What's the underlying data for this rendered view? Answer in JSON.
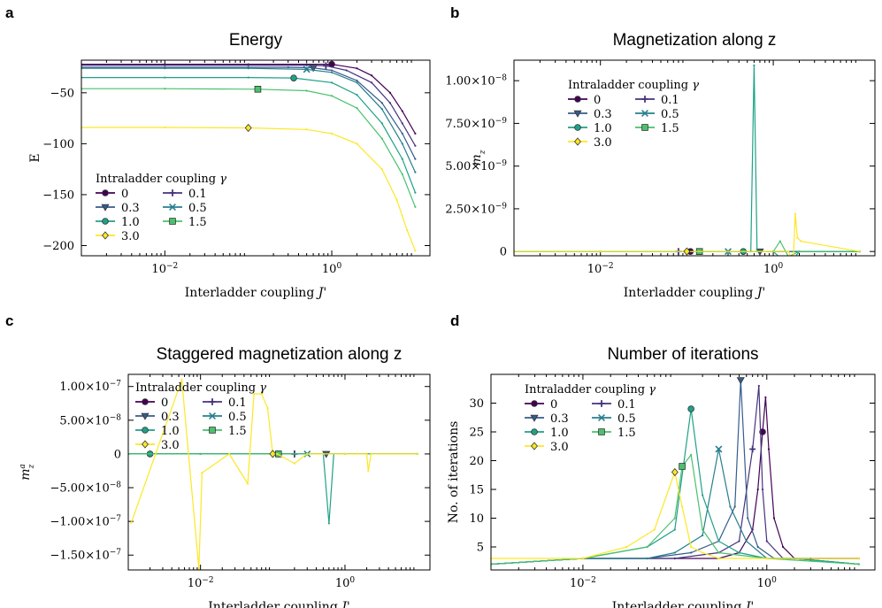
{
  "palette": {
    "0": "#440154",
    "0.1": "#46337e",
    "0.3": "#365c8d",
    "0.5": "#277f8e",
    "1.0": "#1fa187",
    "1.5": "#4ac16d",
    "3.0": "#fde725"
  },
  "chart_data": [
    {
      "type": "line",
      "letter": "a",
      "title": "Energy",
      "xlabel": "Interladder coupling J'",
      "ylabel": "E",
      "xscale": "log",
      "xlim": [
        0.001,
        15
      ],
      "ylim": [
        -210,
        -18
      ],
      "xticks": [
        {
          "v": 0.01,
          "label": "10^{-2}"
        },
        {
          "v": 1,
          "label": "10^{0}"
        }
      ],
      "yticks": [
        {
          "v": -50,
          "label": "−50"
        },
        {
          "v": -100,
          "label": "−100"
        },
        {
          "v": -150,
          "label": "−150"
        },
        {
          "v": -200,
          "label": "−200"
        }
      ],
      "legend": {
        "title": "Intraladder coupling γ",
        "placement": "lower-left"
      },
      "series": [
        {
          "name": "0",
          "marker": "circle",
          "marker_at": 1.0,
          "x": [
            0.001,
            0.01,
            0.1,
            0.5,
            1,
            2,
            3,
            5,
            7,
            10
          ],
          "y": [
            -22,
            -22,
            -22,
            -22,
            -22,
            -26,
            -33,
            -50,
            -68,
            -90
          ]
        },
        {
          "name": "0.1",
          "marker": "plus",
          "marker_at": 0.85,
          "x": [
            0.001,
            0.01,
            0.1,
            0.5,
            0.85,
            1.5,
            3,
            5,
            7,
            10
          ],
          "y": [
            -23,
            -23,
            -23,
            -23,
            -23.5,
            -28,
            -40,
            -60,
            -80,
            -102
          ]
        },
        {
          "name": "0.3",
          "marker": "triangle",
          "marker_at": 0.6,
          "x": [
            0.001,
            0.01,
            0.1,
            0.3,
            0.6,
            1,
            2,
            4,
            7,
            10
          ],
          "y": [
            -25,
            -25,
            -25,
            -25,
            -25.5,
            -28,
            -38,
            -60,
            -90,
            -115
          ]
        },
        {
          "name": "0.5",
          "marker": "x",
          "marker_at": 0.5,
          "x": [
            0.001,
            0.01,
            0.1,
            0.5,
            1,
            2,
            4,
            7,
            10
          ],
          "y": [
            -26,
            -26,
            -26,
            -27,
            -30,
            -40,
            -66,
            -100,
            -128
          ]
        },
        {
          "name": "1.0",
          "marker": "circle",
          "marker_at": 0.35,
          "x": [
            0.001,
            0.01,
            0.1,
            0.35,
            1,
            2,
            4,
            7,
            10
          ],
          "y": [
            -35,
            -35,
            -35,
            -35.5,
            -40,
            -52,
            -80,
            -115,
            -148
          ]
        },
        {
          "name": "1.5",
          "marker": "square",
          "marker_at": 0.13,
          "x": [
            0.001,
            0.01,
            0.13,
            0.5,
            1,
            2,
            4,
            7,
            10
          ],
          "y": [
            -46,
            -46,
            -46.5,
            -48,
            -53,
            -65,
            -95,
            -130,
            -162
          ]
        },
        {
          "name": "3.0",
          "marker": "diamond",
          "marker_at": 0.1,
          "x": [
            0.001,
            0.01,
            0.1,
            0.5,
            1,
            2,
            4,
            6,
            8,
            10
          ],
          "y": [
            -84,
            -84,
            -84.5,
            -86,
            -90,
            -100,
            -125,
            -155,
            -185,
            -205
          ]
        }
      ]
    },
    {
      "type": "line",
      "letter": "b",
      "title": "Magnetization along z",
      "xlabel": "Interladder coupling J'",
      "ylabel": "m_z",
      "xscale": "log",
      "xlim": [
        0.001,
        15
      ],
      "ylim": [
        -2.5e-10,
        1.12e-08
      ],
      "xticks": [
        {
          "v": 0.01,
          "label": "10^{-2}"
        },
        {
          "v": 1,
          "label": "10^{0}"
        }
      ],
      "yticks": [
        {
          "v": 0,
          "label": "0"
        },
        {
          "v": 2.5e-09,
          "label": "2.50×10^{-9}"
        },
        {
          "v": 5e-09,
          "label": "5.00×10^{-9}"
        },
        {
          "v": 7.5e-09,
          "label": "7.50×10^{-9}"
        },
        {
          "v": 1e-08,
          "label": "1.00×10^{-8}"
        }
      ],
      "legend": {
        "title": "Intraladder coupling γ",
        "placement": "upper-left"
      },
      "series": [
        {
          "name": "0",
          "marker": "circle",
          "marker_at": 0.11,
          "x": [
            0.001,
            0.01,
            0.11,
            1,
            2,
            10
          ],
          "y": [
            0,
            0,
            0,
            0,
            0,
            0
          ]
        },
        {
          "name": "0.1",
          "marker": "plus",
          "marker_at": 0.08,
          "x": [
            0.001,
            0.01,
            0.08,
            1,
            10
          ],
          "y": [
            0,
            0,
            0,
            0,
            0
          ]
        },
        {
          "name": "0.3",
          "marker": "triangle",
          "marker_at": 0.7,
          "x": [
            0.001,
            0.01,
            0.1,
            0.7,
            1,
            10
          ],
          "y": [
            0,
            0,
            0,
            0,
            0,
            0
          ]
        },
        {
          "name": "0.5",
          "marker": "x",
          "marker_at": 0.3,
          "x": [
            0.001,
            0.01,
            0.3,
            1,
            10
          ],
          "y": [
            0,
            0,
            0,
            0,
            0
          ]
        },
        {
          "name": "1.0",
          "marker": "circle",
          "marker_at": 0.45,
          "x": [
            0.001,
            0.01,
            0.1,
            0.45,
            0.55,
            0.6,
            0.65,
            1,
            1.5,
            2,
            10
          ],
          "y": [
            0,
            0,
            0,
            0,
            0,
            1.09e-08,
            0,
            0,
            -8e-10,
            0,
            0
          ]
        },
        {
          "name": "1.5",
          "marker": "square",
          "marker_at": 0.14,
          "x": [
            0.001,
            0.01,
            0.14,
            1,
            1.2,
            1.5,
            2,
            10
          ],
          "y": [
            0,
            0,
            0,
            0,
            6e-10,
            -3e-10,
            0,
            0
          ]
        },
        {
          "name": "3.0",
          "marker": "diamond",
          "marker_at": 0.1,
          "x": [
            0.001,
            0.01,
            0.1,
            0.8,
            1.5,
            1.7,
            1.8,
            1.9,
            2.1,
            10
          ],
          "y": [
            0,
            0,
            0,
            0,
            0,
            -6e-10,
            2.2e-09,
            8e-10,
            6e-10,
            0
          ]
        }
      ]
    },
    {
      "type": "line",
      "letter": "c",
      "title": "Staggered magnetization along z",
      "xlabel": "Interladder coupling J'",
      "ylabel": "m_z^a",
      "xscale": "log",
      "xlim": [
        0.001,
        15
      ],
      "ylim": [
        -1.72e-07,
        1.18e-07
      ],
      "xticks": [
        {
          "v": 0.01,
          "label": "10^{-2}"
        },
        {
          "v": 1,
          "label": "10^{0}"
        }
      ],
      "yticks": [
        {
          "v": 1e-07,
          "label": "1.00×10^{-7}"
        },
        {
          "v": 5e-08,
          "label": "5.00×10^{-8}"
        },
        {
          "v": 0,
          "label": "0"
        },
        {
          "v": -5e-08,
          "label": "−5.00×10^{-8}"
        },
        {
          "v": -1e-07,
          "label": "−1.00×10^{-7}"
        },
        {
          "v": -1.5e-07,
          "label": "−1.50×10^{-7}"
        }
      ],
      "legend": {
        "title": "Intraladder coupling γ",
        "placement": "upper-left"
      },
      "series": [
        {
          "name": "0",
          "marker": "circle",
          "marker_at": 0.12,
          "x": [
            0.001,
            0.01,
            0.12,
            1,
            10
          ],
          "y": [
            0,
            0,
            0,
            0,
            0
          ]
        },
        {
          "name": "0.1",
          "marker": "plus",
          "marker_at": 0.2,
          "x": [
            0.001,
            0.01,
            0.2,
            1,
            10
          ],
          "y": [
            0,
            0,
            0,
            0,
            0
          ]
        },
        {
          "name": "0.3",
          "marker": "triangle",
          "marker_at": 0.55,
          "x": [
            0.001,
            0.01,
            0.1,
            0.55,
            1,
            10
          ],
          "y": [
            0,
            0,
            0,
            0,
            0,
            0
          ]
        },
        {
          "name": "0.5",
          "marker": "x",
          "marker_at": 0.3,
          "x": [
            0.001,
            0.01,
            0.3,
            1,
            10
          ],
          "y": [
            0,
            0,
            0,
            0,
            0
          ]
        },
        {
          "name": "1.0",
          "marker": "circle",
          "marker_at": 0.002,
          "x": [
            0.001,
            0.002,
            0.01,
            0.1,
            0.5,
            0.6,
            0.7,
            1,
            10
          ],
          "y": [
            0,
            0,
            0,
            0,
            0,
            -1.03e-07,
            0,
            0,
            0
          ]
        },
        {
          "name": "1.5",
          "marker": "square",
          "marker_at": 0.12,
          "x": [
            0.001,
            0.01,
            0.12,
            1,
            10
          ],
          "y": [
            0,
            0,
            0,
            0,
            0
          ]
        },
        {
          "name": "3.0",
          "marker": "diamond",
          "marker_at": 0.1,
          "x": [
            0.0011,
            0.0055,
            0.0095,
            0.0105,
            0.025,
            0.045,
            0.055,
            0.07,
            0.085,
            0.1,
            0.115,
            0.2,
            0.3,
            0.5,
            1,
            1.5,
            2,
            2.1,
            2.3,
            10
          ],
          "y": [
            -1.02e-07,
            1.1e-07,
            -1.7e-07,
            -2.8e-08,
            0,
            -4.4e-08,
            8.9e-08,
            8.9e-08,
            6.8e-08,
            0,
            0,
            -1.4e-08,
            0,
            0,
            0,
            0,
            0,
            -2.5e-08,
            0,
            0
          ]
        }
      ]
    },
    {
      "type": "line",
      "letter": "d",
      "title": "Number of iterations",
      "xlabel": "Interladder coupling J'",
      "ylabel": "No. of iterations",
      "xscale": "log",
      "xlim": [
        0.001,
        15
      ],
      "ylim": [
        1,
        35
      ],
      "xticks": [
        {
          "v": 0.01,
          "label": "10^{-2}"
        },
        {
          "v": 1,
          "label": "10^{0}"
        }
      ],
      "yticks": [
        {
          "v": 5,
          "label": "5"
        },
        {
          "v": 10,
          "label": "10"
        },
        {
          "v": 15,
          "label": "15"
        },
        {
          "v": 20,
          "label": "20"
        },
        {
          "v": 25,
          "label": "25"
        },
        {
          "v": 30,
          "label": "30"
        }
      ],
      "legend": {
        "title": "Intraladder coupling γ",
        "placement": "upper-left"
      },
      "series": [
        {
          "name": "0",
          "marker": "circle",
          "marker_at": 0.9,
          "x": [
            0.001,
            0.01,
            0.1,
            0.3,
            0.5,
            0.7,
            0.8,
            0.9,
            0.97,
            1.05,
            1.2,
            1.5,
            2,
            3,
            10
          ],
          "y": [
            2,
            3,
            3,
            3,
            4,
            8,
            15,
            25,
            31,
            22,
            10,
            5,
            3,
            3,
            3
          ]
        },
        {
          "name": "0.1",
          "marker": "plus",
          "marker_at": 0.7,
          "x": [
            0.001,
            0.01,
            0.1,
            0.3,
            0.5,
            0.7,
            0.82,
            0.9,
            1,
            1.5,
            2,
            10
          ],
          "y": [
            2,
            3,
            3,
            4,
            6,
            22,
            33,
            15,
            6,
            3,
            3,
            3
          ]
        },
        {
          "name": "0.3",
          "marker": "triangle",
          "marker_at": 0.52,
          "x": [
            0.001,
            0.01,
            0.05,
            0.15,
            0.3,
            0.45,
            0.52,
            0.62,
            0.8,
            1.2,
            2,
            10
          ],
          "y": [
            2,
            3,
            3,
            4,
            6,
            12,
            34,
            10,
            5,
            3,
            3,
            2
          ]
        },
        {
          "name": "0.5",
          "marker": "x",
          "marker_at": 0.3,
          "x": [
            0.001,
            0.01,
            0.05,
            0.1,
            0.2,
            0.3,
            0.4,
            0.6,
            1,
            2,
            10
          ],
          "y": [
            2,
            3,
            3,
            4,
            7,
            22,
            12,
            6,
            3,
            3,
            2
          ]
        },
        {
          "name": "1.0",
          "marker": "circle",
          "marker_at": 0.15,
          "x": [
            0.001,
            0.01,
            0.05,
            0.1,
            0.15,
            0.2,
            0.3,
            0.5,
            1,
            2,
            10
          ],
          "y": [
            2,
            3,
            5,
            8,
            29,
            14,
            6,
            4,
            3,
            3,
            2
          ]
        },
        {
          "name": "1.5",
          "marker": "square",
          "marker_at": 0.12,
          "x": [
            0.001,
            0.01,
            0.05,
            0.1,
            0.12,
            0.15,
            0.2,
            0.3,
            1,
            10
          ],
          "y": [
            2,
            3,
            5,
            10,
            19,
            21,
            8,
            4,
            3,
            2
          ]
        },
        {
          "name": "3.0",
          "marker": "diamond",
          "marker_at": 0.1,
          "x": [
            0.001,
            0.01,
            0.03,
            0.06,
            0.1,
            0.12,
            0.15,
            0.2,
            0.3,
            1,
            10
          ],
          "y": [
            3,
            3,
            5,
            8,
            18,
            12,
            5,
            4,
            3,
            3,
            3
          ]
        }
      ]
    }
  ]
}
